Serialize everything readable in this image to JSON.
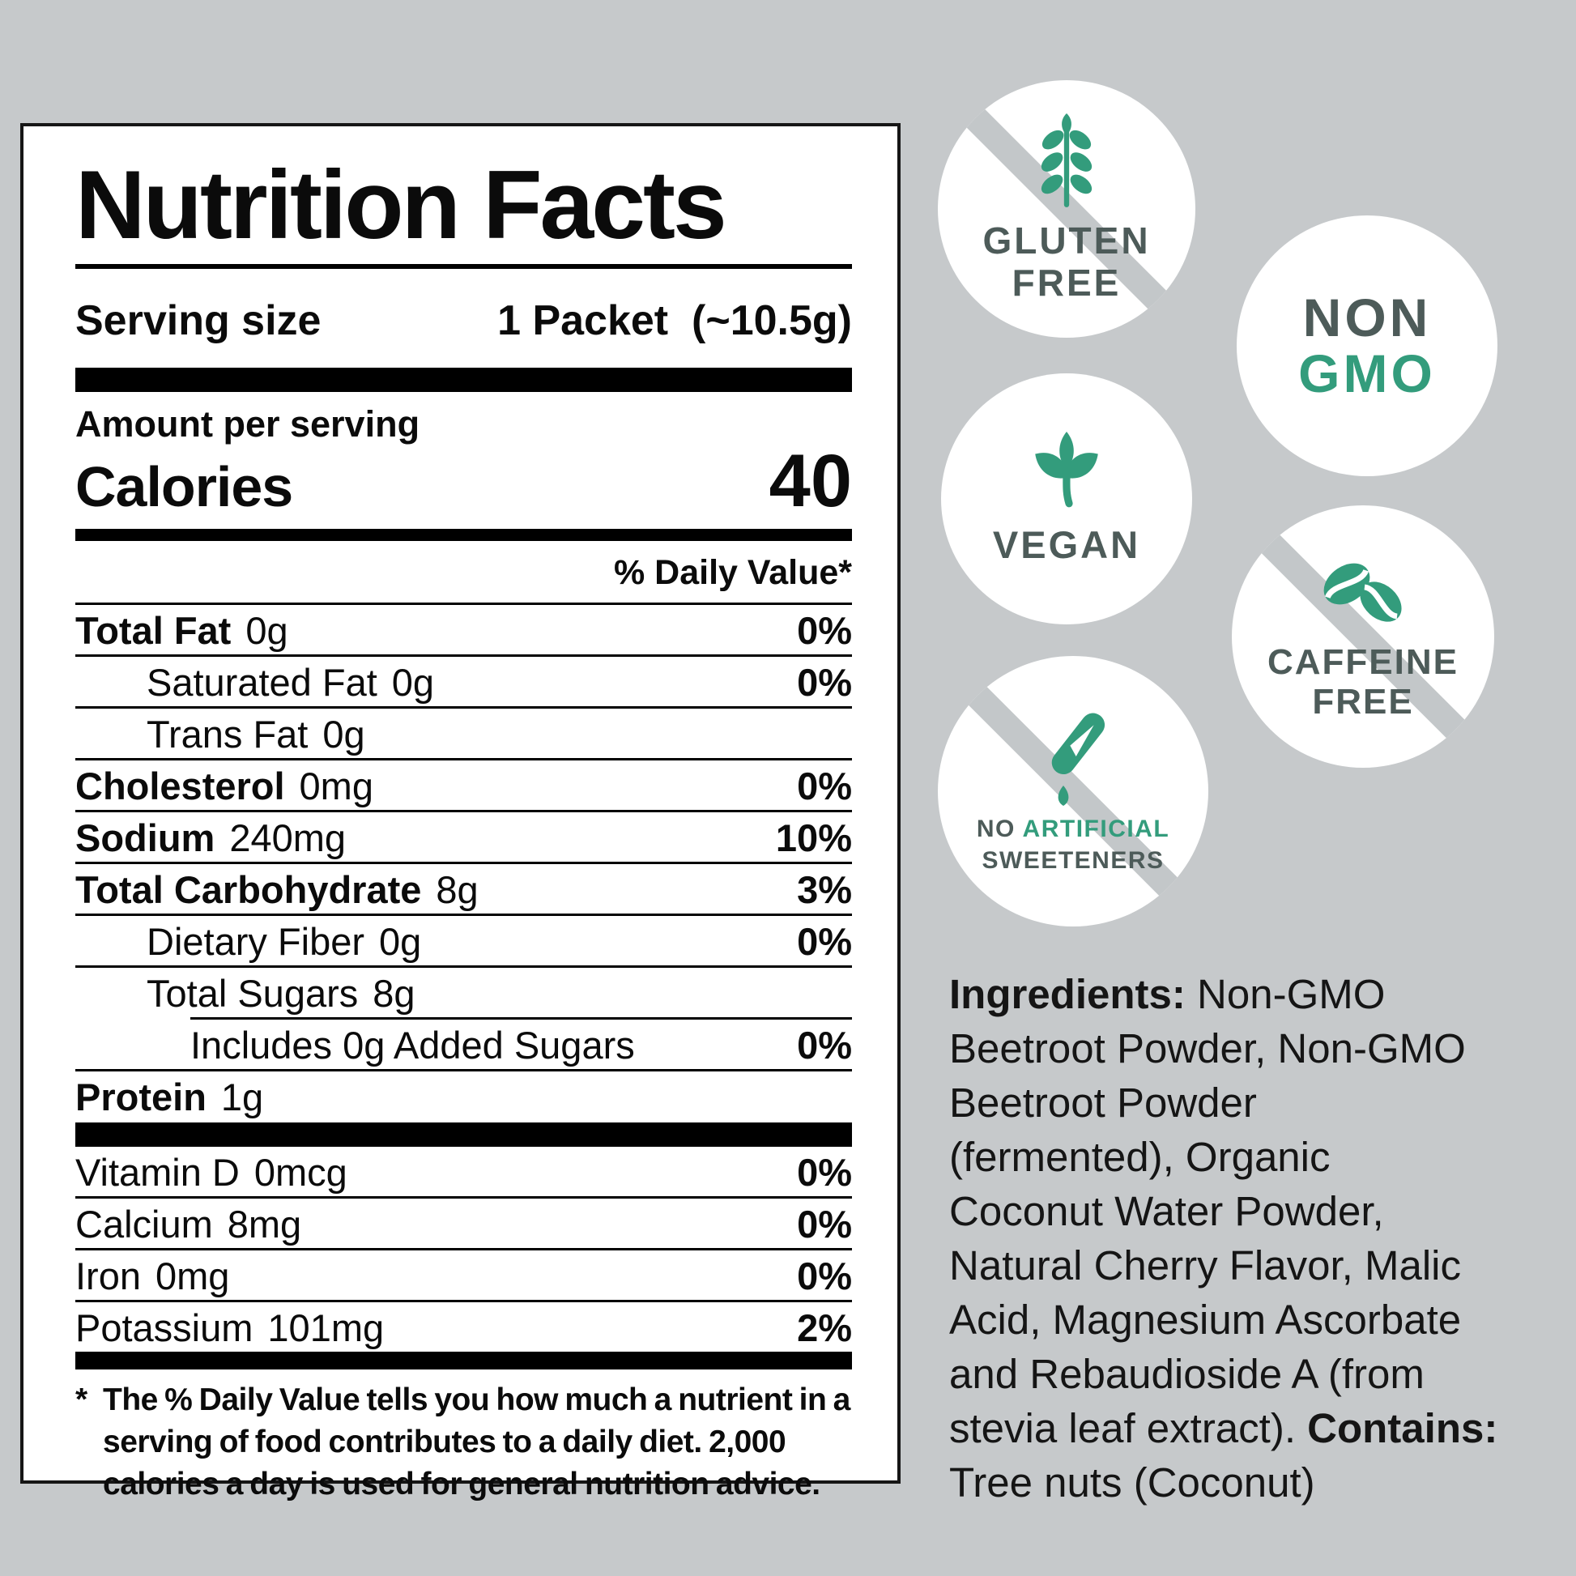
{
  "colors": {
    "background": "#c6c9cb",
    "slash_overlay": "#c3c7c9",
    "accent_green": "#339c7c",
    "badge_text_slate": "#4d5b59",
    "label_ink": "#0b0b0b"
  },
  "nutrition_panel": {
    "title": "Nutrition Facts",
    "serving_size_label": "Serving size",
    "serving_size_value": "1 Packet  (~10.5g)",
    "amount_per_serving": "Amount per serving",
    "calories_label": "Calories",
    "calories_value": "40",
    "daily_value_header": "% Daily Value*",
    "rows": [
      {
        "label": "Total Fat",
        "amount": "0g",
        "dv": "0%",
        "bold": true,
        "indent": 0,
        "rule": "full"
      },
      {
        "label": "Saturated Fat",
        "amount": "0g",
        "dv": "0%",
        "bold": false,
        "indent": 1,
        "rule": "full"
      },
      {
        "label": "Trans Fat",
        "amount": "0g",
        "dv": "",
        "bold": false,
        "indent": 1,
        "rule": "full"
      },
      {
        "label": "Cholesterol",
        "amount": "0mg",
        "dv": "0%",
        "bold": true,
        "indent": 0,
        "rule": "full"
      },
      {
        "label": "Sodium",
        "amount": "240mg",
        "dv": "10%",
        "bold": true,
        "indent": 0,
        "rule": "full"
      },
      {
        "label": "Total Carbohydrate",
        "amount": "8g",
        "dv": "3%",
        "bold": true,
        "indent": 0,
        "rule": "full"
      },
      {
        "label": "Dietary Fiber",
        "amount": "0g",
        "dv": "0%",
        "bold": false,
        "indent": 1,
        "rule": "full"
      },
      {
        "label": "Total Sugars",
        "amount": "8g",
        "dv": "",
        "bold": false,
        "indent": 1,
        "rule": "indent"
      },
      {
        "label": "Includes 0g Added Sugars",
        "amount": "",
        "dv": "0%",
        "bold": false,
        "indent": 2,
        "rule": "full"
      },
      {
        "label": "Protein",
        "amount": "1g",
        "dv": "",
        "bold": true,
        "indent": 0,
        "rule": "none"
      }
    ],
    "micronutrients": [
      {
        "label": "Vitamin D",
        "amount": "0mcg",
        "dv": "0%",
        "rule": "full"
      },
      {
        "label": "Calcium",
        "amount": "8mg",
        "dv": "0%",
        "rule": "full"
      },
      {
        "label": "Iron",
        "amount": "0mg",
        "dv": "0%",
        "rule": "full"
      },
      {
        "label": "Potassium",
        "amount": "101mg",
        "dv": "2%",
        "rule": "none"
      }
    ],
    "footnote_marker": "*",
    "footnote": "The % Daily Value tells you how much a nutrient in a serving of food contributes to a daily diet. 2,000 calories a day is used for general nutrition advice."
  },
  "badges": [
    {
      "id": "gluten-free",
      "label": "Gluten Free",
      "icon": "wheat-icon",
      "slash": true,
      "lines": [
        [
          {
            "t": "GLUTEN"
          }
        ],
        [
          {
            "t": "FREE"
          }
        ]
      ]
    },
    {
      "id": "non-gmo",
      "label": "Non GMO",
      "icon": null,
      "slash": false,
      "lines": [
        [
          {
            "t": "NON"
          }
        ],
        [
          {
            "t": "GMO",
            "c": "green"
          }
        ]
      ]
    },
    {
      "id": "vegan",
      "label": "Vegan",
      "icon": "leaves-icon",
      "slash": false,
      "lines": [
        [
          {
            "t": "VEGAN"
          }
        ]
      ]
    },
    {
      "id": "caffeine-free",
      "label": "Caffeine Free",
      "icon": "coffee-beans-icon",
      "slash": true,
      "lines": [
        [
          {
            "t": "CAFFEINE"
          }
        ],
        [
          {
            "t": "FREE"
          }
        ]
      ]
    },
    {
      "id": "no-artificial-sweeteners",
      "label": "No Artificial Sweeteners",
      "icon": "sweetener-drop-icon",
      "slash": true,
      "lines": [
        [
          {
            "t": "NO "
          },
          {
            "t": "ARTIFICIAL",
            "c": "green"
          }
        ],
        [
          {
            "t": "SWEETENERS"
          }
        ]
      ]
    }
  ],
  "ingredients_lines": [
    [
      {
        "t": "Ingredients:",
        "b": true
      },
      {
        "t": " Non-GMO"
      }
    ],
    [
      {
        "t": "Beetroot Powder, Non-GMO"
      }
    ],
    [
      {
        "t": "Beetroot Powder"
      }
    ],
    [
      {
        "t": "(fermented), Organic"
      }
    ],
    [
      {
        "t": "Coconut Water Powder,"
      }
    ],
    [
      {
        "t": "Natural Cherry Flavor, Malic"
      }
    ],
    [
      {
        "t": "Acid, Magnesium Ascorbate"
      }
    ],
    [
      {
        "t": "and Rebaudioside A (from"
      }
    ],
    [
      {
        "t": "stevia leaf extract). "
      },
      {
        "t": "Contains:",
        "b": true
      }
    ],
    [
      {
        "t": "Tree nuts (Coconut)"
      }
    ]
  ]
}
